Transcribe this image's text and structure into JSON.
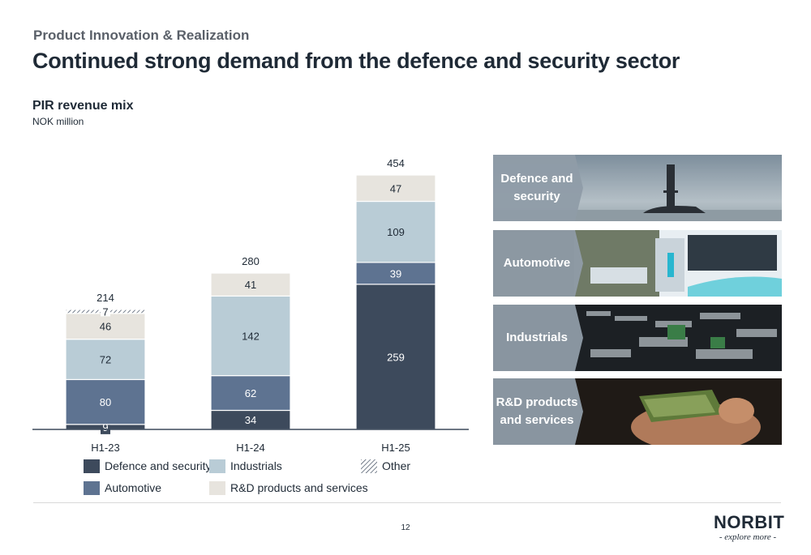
{
  "header": {
    "section": "Product Innovation & Realization",
    "title": "Continued strong demand from the defence and security sector"
  },
  "chart_title": "PIR revenue mix",
  "chart_unit": "NOK million",
  "colors": {
    "defence": "#3d4a5c",
    "automotive": "#5e7391",
    "industrials": "#b9ccd6",
    "rnd": "#e7e4de",
    "other": "#ffffff"
  },
  "chart_data": {
    "type": "bar",
    "stacked": true,
    "categories": [
      "H1-23",
      "H1-24",
      "H1-25"
    ],
    "series": [
      {
        "name": "Defence and security",
        "values": [
          9,
          34,
          259
        ],
        "color": "#3d4a5c"
      },
      {
        "name": "Automotive",
        "values": [
          80,
          62,
          39
        ],
        "color": "#5e7391"
      },
      {
        "name": "Industrials",
        "values": [
          72,
          142,
          109
        ],
        "color": "#b9ccd6"
      },
      {
        "name": "R&D products and services",
        "values": [
          46,
          41,
          47
        ],
        "color": "#e7e4de"
      },
      {
        "name": "Other",
        "values": [
          7,
          0,
          0
        ],
        "color": "#ffffff",
        "pattern": "hatched"
      }
    ],
    "totals": [
      214,
      280,
      454
    ],
    "title": "PIR revenue mix",
    "ylabel": "NOK million",
    "ylim": [
      0,
      454
    ],
    "grid": false,
    "legend": "bottom"
  },
  "legend": {
    "defence": "Defence and security",
    "automotive": "Automotive",
    "industrials": "Industrials",
    "rnd": "R&D products and services",
    "other": "Other"
  },
  "sectors": [
    {
      "label": "Defence and security",
      "icon": "submarine-photo"
    },
    {
      "label": "Automotive",
      "icon": "electric-bus-photo"
    },
    {
      "label": "Industrials",
      "icon": "circuit-boards-photo"
    },
    {
      "label": "R&D products and services",
      "icon": "hand-holding-pcb-photo"
    }
  ],
  "footer": {
    "page_number": "12",
    "logo_text": "NORBIT",
    "tagline": "- explore more -"
  }
}
